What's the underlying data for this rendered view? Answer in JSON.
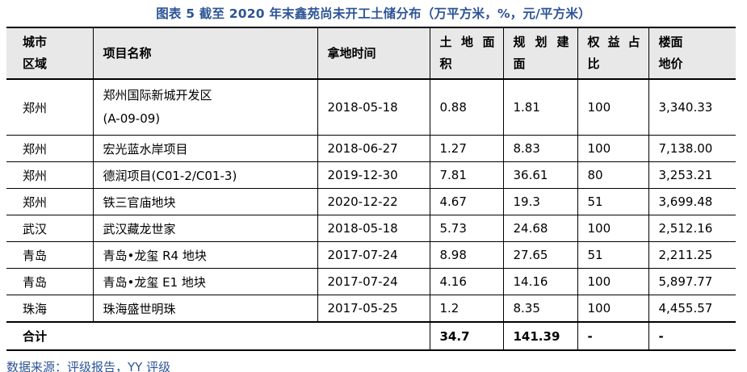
{
  "title": "图表 5 截至 2020 年末鑫苑尚未开工土储分布（万平方米，%，元/平方米）",
  "table": {
    "columns": [
      {
        "key": "city",
        "label": "城市区域",
        "lines": [
          "城市",
          "区域"
        ],
        "spread": false
      },
      {
        "key": "project",
        "label": "项目名称",
        "lines": [
          "项目名称"
        ],
        "spread": false
      },
      {
        "key": "date",
        "label": "拿地时间",
        "lines": [
          "拿地时间"
        ],
        "spread": false
      },
      {
        "key": "land_area",
        "label": "土地面积",
        "lines": [
          "土地面",
          "积"
        ],
        "spread": true
      },
      {
        "key": "planned_area",
        "label": "规划建面",
        "lines": [
          "规划建",
          "面"
        ],
        "spread": true
      },
      {
        "key": "equity",
        "label": "权益占比",
        "lines": [
          "权益占",
          "比"
        ],
        "spread": true
      },
      {
        "key": "floor_price",
        "label": "楼面地价",
        "lines": [
          "楼面",
          "地价"
        ],
        "spread": false
      }
    ],
    "rows": [
      {
        "city": "郑州",
        "project": [
          "郑州国际新城开发区",
          "(A-09-09)"
        ],
        "date": "2018-05-18",
        "land_area": "0.88",
        "planned_area": "1.81",
        "equity": "100",
        "floor_price": "3,340.33"
      },
      {
        "city": "郑州",
        "project": [
          "宏光蓝水岸项目"
        ],
        "date": "2018-06-27",
        "land_area": "1.27",
        "planned_area": "8.83",
        "equity": "100",
        "floor_price": "7,138.00"
      },
      {
        "city": "郑州",
        "project": [
          "德润项目(C01-2/C01-3)"
        ],
        "date": "2019-12-30",
        "land_area": "7.81",
        "planned_area": "36.61",
        "equity": "80",
        "floor_price": "3,253.21"
      },
      {
        "city": "郑州",
        "project": [
          "铁三官庙地块"
        ],
        "date": "2020-12-22",
        "land_area": "4.67",
        "planned_area": "19.3",
        "equity": "51",
        "floor_price": "3,699.48"
      },
      {
        "city": "武汉",
        "project": [
          "武汉藏龙世家"
        ],
        "date": "2018-05-18",
        "land_area": "5.73",
        "planned_area": "24.68",
        "equity": "100",
        "floor_price": "2,512.16"
      },
      {
        "city": "青岛",
        "project": [
          "青岛•龙玺 R4 地块"
        ],
        "date": "2017-07-24",
        "land_area": "8.98",
        "planned_area": "27.65",
        "equity": "51",
        "floor_price": "2,211.25"
      },
      {
        "city": "青岛",
        "project": [
          "青岛•龙玺 E1 地块"
        ],
        "date": "2017-07-24",
        "land_area": "4.16",
        "planned_area": "14.16",
        "equity": "100",
        "floor_price": "5,897.77"
      },
      {
        "city": "珠海",
        "project": [
          "珠海盛世明珠"
        ],
        "date": "2017-05-25",
        "land_area": "1.2",
        "planned_area": "8.35",
        "equity": "100",
        "floor_price": "4,455.57"
      }
    ],
    "total_row": {
      "label": "合计",
      "land_area": "34.7",
      "planned_area": "141.39",
      "equity": "-",
      "floor_price": "-"
    }
  },
  "footer": {
    "source_text": "数据来源：评级报告，YY 评级"
  },
  "colors": {
    "title": "#2E5496",
    "source": "#2E5496",
    "header_bg": "#E8E8E8",
    "border": "#000000"
  }
}
